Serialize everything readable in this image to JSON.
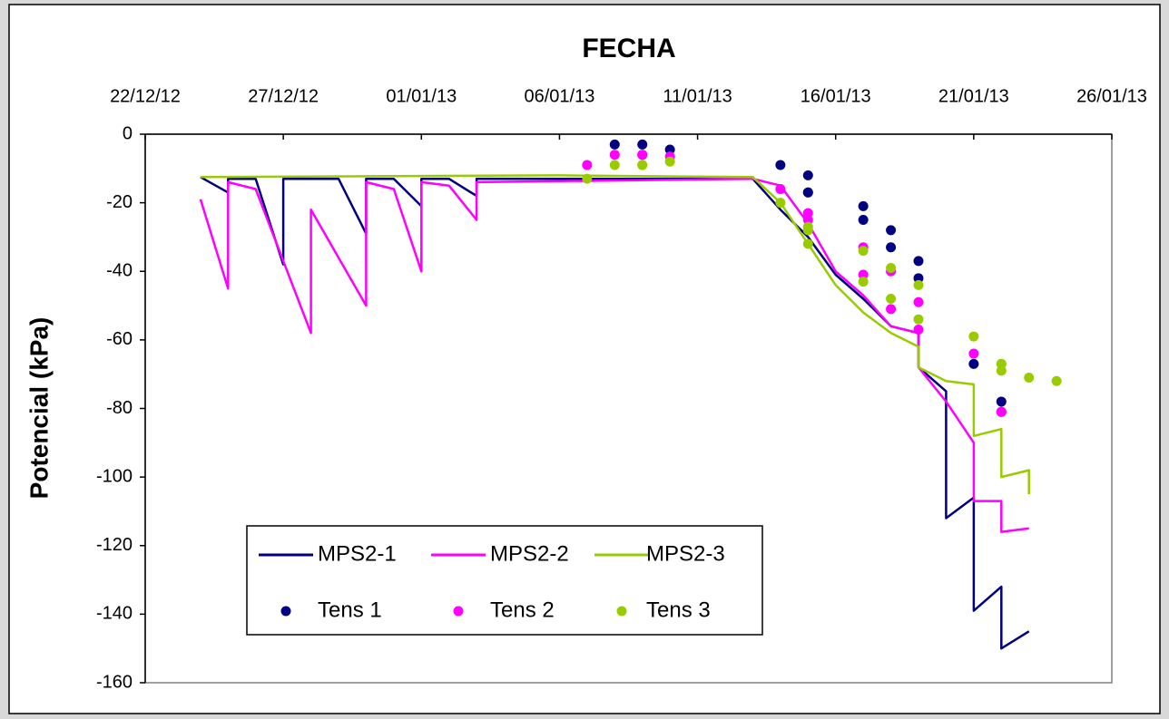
{
  "chart_data": {
    "type": "line",
    "title": "FECHA",
    "y_label": "Potencial (kPa)",
    "xlim": [
      "2012-12-22",
      "2013-01-26"
    ],
    "xticks": [
      {
        "value": "2012-12-22",
        "label": "22/12/12"
      },
      {
        "value": "2012-12-27",
        "label": "27/12/12"
      },
      {
        "value": "2013-01-01",
        "label": "01/01/13"
      },
      {
        "value": "2013-01-06",
        "label": "06/01/13"
      },
      {
        "value": "2013-01-11",
        "label": "11/01/13"
      },
      {
        "value": "2013-01-16",
        "label": "16/01/13"
      },
      {
        "value": "2013-01-21",
        "label": "21/01/13"
      },
      {
        "value": "2013-01-26",
        "label": "26/01/13"
      }
    ],
    "ylim": [
      -160,
      0
    ],
    "yticks": [
      0,
      -20,
      -40,
      -60,
      -80,
      -100,
      -120,
      -140,
      -160
    ],
    "series": [
      {
        "name": "MPS2-1",
        "color": "#000080",
        "type": "line",
        "x": [
          "2012-12-24",
          "2012-12-25",
          "2012-12-25",
          "2012-12-26",
          "2012-12-27",
          "2012-12-27",
          "2012-12-29",
          "2012-12-30",
          "2012-12-30",
          "2012-12-31",
          "2013-01-01",
          "2013-01-01",
          "2013-01-02",
          "2013-01-03",
          "2013-01-03",
          "2013-01-13",
          "2013-01-14",
          "2013-01-15",
          "2013-01-16",
          "2013-01-17",
          "2013-01-18",
          "2013-01-19",
          "2013-01-19",
          "2013-01-20",
          "2013-01-20",
          "2013-01-21",
          "2013-01-21",
          "2013-01-22",
          "2013-01-22",
          "2013-01-23"
        ],
        "values": [
          -12.5,
          -17,
          -13,
          -13,
          -38,
          -13,
          -13,
          -29,
          -13,
          -13,
          -21,
          -13,
          -13,
          -18,
          -13,
          -13,
          -22,
          -30,
          -41,
          -48,
          -56,
          -58,
          -68,
          -75,
          -112,
          -106,
          -139,
          -132,
          -150,
          -145
        ]
      },
      {
        "name": "MPS2-2",
        "color": "#ff00ff",
        "type": "line",
        "x": [
          "2012-12-24",
          "2012-12-25",
          "2012-12-25",
          "2012-12-26",
          "2012-12-28",
          "2012-12-28",
          "2012-12-30",
          "2012-12-30",
          "2012-12-31",
          "2013-01-01",
          "2013-01-01",
          "2013-01-02",
          "2013-01-03",
          "2013-01-03",
          "2013-01-13",
          "2013-01-14",
          "2013-01-15",
          "2013-01-16",
          "2013-01-17",
          "2013-01-18",
          "2013-01-19",
          "2013-01-19",
          "2013-01-20",
          "2013-01-21",
          "2013-01-21",
          "2013-01-22",
          "2013-01-22",
          "2013-01-23"
        ],
        "values": [
          -19,
          -45,
          -14,
          -16,
          -58,
          -22,
          -50,
          -14,
          -16,
          -40,
          -14,
          -15,
          -25,
          -14,
          -13,
          -15,
          -26,
          -40,
          -47,
          -56,
          -58,
          -68,
          -78,
          -90,
          -107,
          -107,
          -116,
          -115
        ]
      },
      {
        "name": "MPS2-3",
        "color": "#99cc00",
        "type": "line",
        "x": [
          "2012-12-24",
          "2013-01-06",
          "2013-01-13",
          "2013-01-14",
          "2013-01-15",
          "2013-01-16",
          "2013-01-17",
          "2013-01-18",
          "2013-01-19",
          "2013-01-19",
          "2013-01-20",
          "2013-01-21",
          "2013-01-21",
          "2013-01-22",
          "2013-01-22",
          "2013-01-23",
          "2013-01-23"
        ],
        "values": [
          -12.5,
          -12,
          -12.5,
          -20,
          -32,
          -44,
          -52,
          -58,
          -62,
          -68,
          -72,
          -73,
          -88,
          -86,
          -100,
          -98,
          -105
        ]
      },
      {
        "name": "Tens 1",
        "color": "#000080",
        "type": "scatter",
        "x": [
          "2013-01-08",
          "2013-01-09",
          "2013-01-10",
          "2013-01-14",
          "2013-01-15",
          "2013-01-15",
          "2013-01-15",
          "2013-01-17",
          "2013-01-17",
          "2013-01-18",
          "2013-01-18",
          "2013-01-19",
          "2013-01-19",
          "2013-01-21",
          "2013-01-22"
        ],
        "values": [
          -3,
          -3,
          -4.5,
          -9,
          -12,
          -17,
          -17,
          -21,
          -25,
          -28,
          -33,
          -37,
          -42,
          -67,
          -78
        ]
      },
      {
        "name": "Tens 2",
        "color": "#ff00ff",
        "type": "scatter",
        "x": [
          "2013-01-07",
          "2013-01-08",
          "2013-01-09",
          "2013-01-09",
          "2013-01-10",
          "2013-01-14",
          "2013-01-15",
          "2013-01-15",
          "2013-01-15",
          "2013-01-17",
          "2013-01-17",
          "2013-01-18",
          "2013-01-18",
          "2013-01-19",
          "2013-01-19",
          "2013-01-21",
          "2013-01-22",
          "2013-01-22",
          "2013-01-22"
        ],
        "values": [
          -9,
          -6,
          -6,
          -6,
          -6.5,
          -16,
          -23,
          -25,
          -28,
          -33,
          -41,
          -40,
          -51,
          -49,
          -57,
          -64,
          -81,
          -81,
          -81
        ]
      },
      {
        "name": "Tens 3",
        "color": "#99cc00",
        "type": "scatter",
        "x": [
          "2013-01-07",
          "2013-01-08",
          "2013-01-09",
          "2013-01-09",
          "2013-01-10",
          "2013-01-14",
          "2013-01-15",
          "2013-01-15",
          "2013-01-15",
          "2013-01-17",
          "2013-01-17",
          "2013-01-18",
          "2013-01-18",
          "2013-01-19",
          "2013-01-19",
          "2013-01-21",
          "2013-01-22",
          "2013-01-22",
          "2013-01-22",
          "2013-01-23",
          "2013-01-24"
        ],
        "values": [
          -13,
          -9,
          -9,
          -9,
          -8,
          -20,
          -27,
          -28,
          -32,
          -34,
          -43,
          -39,
          -48,
          -44,
          -54,
          -59,
          -67,
          -67,
          -69,
          -71,
          -72
        ]
      }
    ]
  }
}
